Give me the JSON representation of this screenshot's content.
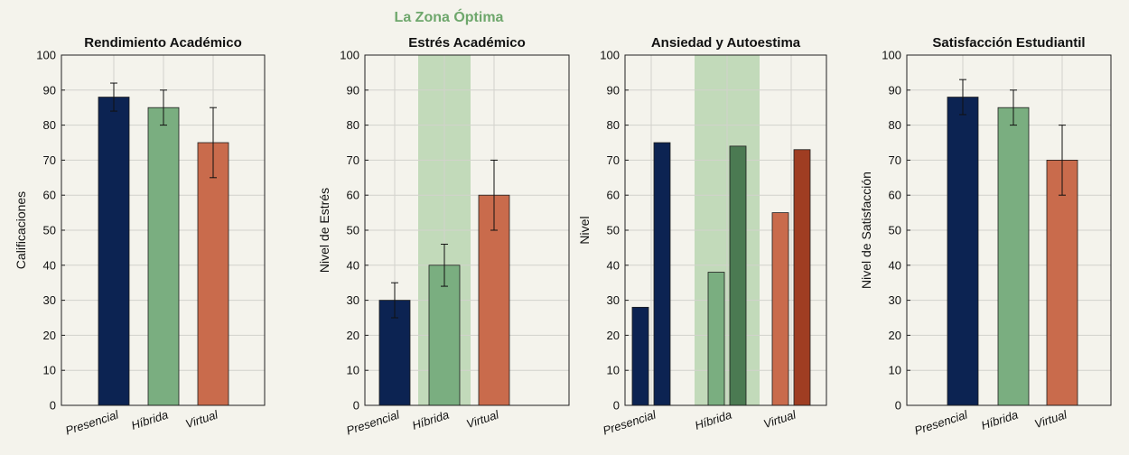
{
  "super_title": "La Zona Óptima",
  "colors": {
    "background": "#f4f3ec",
    "presencial": "#0c2352",
    "hibrida": "#7aae80",
    "virtual": "#c96b4c",
    "hibrida_dark": "#4b7a52",
    "virtual_dark": "#9f3d22",
    "zone": "#b8d5b2",
    "zone_title": "#6ea76c"
  },
  "chart_data": [
    {
      "type": "bar",
      "title": "Rendimiento Académico",
      "ylabel": "Calificaciones",
      "categories": [
        "Presencial",
        "Híbrida",
        "Virtual"
      ],
      "ylim": [
        0,
        100
      ],
      "yticks": [
        0,
        10,
        20,
        30,
        40,
        50,
        60,
        70,
        80,
        90,
        100
      ],
      "grid": true,
      "series": [
        {
          "values": [
            88,
            85,
            75
          ],
          "errors": [
            4,
            5,
            10
          ]
        }
      ]
    },
    {
      "type": "bar",
      "title": "Estrés Académico",
      "ylabel": "Nivel de Estrés",
      "categories": [
        "Presencial",
        "Híbrida",
        "Virtual"
      ],
      "ylim": [
        0,
        100
      ],
      "yticks": [
        0,
        10,
        20,
        30,
        40,
        50,
        60,
        70,
        80,
        90,
        100
      ],
      "grid": true,
      "highlight_category": "Híbrida",
      "series": [
        {
          "values": [
            30,
            40,
            60
          ],
          "errors": [
            5,
            6,
            10
          ]
        }
      ]
    },
    {
      "type": "bar",
      "title": "Ansiedad y Autoestima",
      "ylabel": "Nivel",
      "categories": [
        "Presencial",
        "Híbrida",
        "Virtual"
      ],
      "ylim": [
        0,
        100
      ],
      "yticks": [
        0,
        10,
        20,
        30,
        40,
        50,
        60,
        70,
        80,
        90,
        100
      ],
      "grid": true,
      "highlight_category": "Híbrida",
      "series": [
        {
          "values": [
            28,
            38,
            55
          ]
        },
        {
          "values": [
            75,
            74,
            73
          ]
        }
      ]
    },
    {
      "type": "bar",
      "title": "Satisfacción Estudiantil",
      "ylabel": "Nivel de Satisfacción",
      "categories": [
        "Presencial",
        "Híbrida",
        "Virtual"
      ],
      "ylim": [
        0,
        100
      ],
      "yticks": [
        0,
        10,
        20,
        30,
        40,
        50,
        60,
        70,
        80,
        90,
        100
      ],
      "grid": true,
      "series": [
        {
          "values": [
            88,
            85,
            70
          ],
          "errors": [
            5,
            5,
            10
          ]
        }
      ]
    }
  ]
}
